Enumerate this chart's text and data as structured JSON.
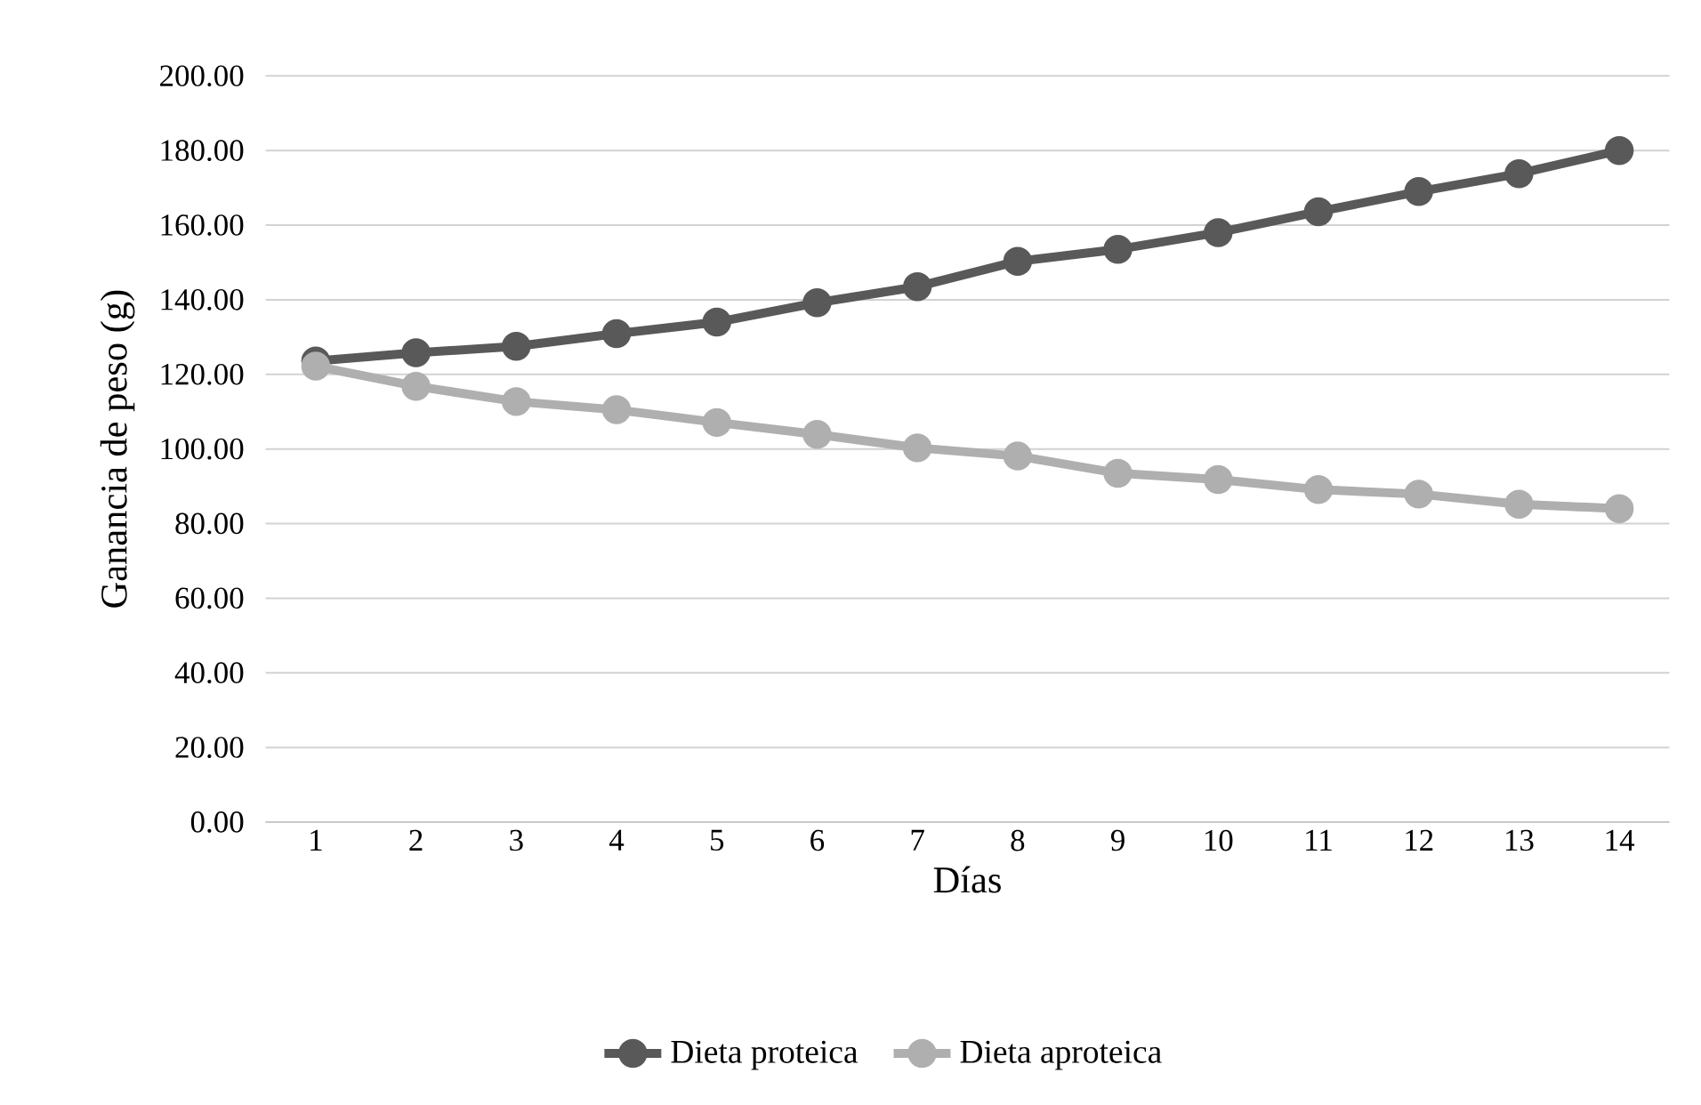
{
  "chart_data": {
    "type": "line",
    "xlabel": "Días",
    "ylabel": "Ganancia de peso (g)",
    "categories": [
      "1",
      "2",
      "3",
      "4",
      "5",
      "6",
      "7",
      "8",
      "9",
      "10",
      "11",
      "12",
      "13",
      "14"
    ],
    "series": [
      {
        "name": "Dieta proteica",
        "color": "#595959",
        "values": [
          123.6,
          125.8,
          127.5,
          130.9,
          134,
          139.2,
          143.5,
          150.3,
          153.5,
          158,
          163.6,
          169,
          173.8,
          180
        ]
      },
      {
        "name": "Dieta aproteica",
        "color": "#afafaf",
        "values": [
          122.2,
          116.8,
          112.7,
          110.5,
          107.1,
          103.9,
          100.3,
          98.1,
          93.5,
          91.8,
          89.1,
          87.9,
          85.2,
          84.0
        ]
      }
    ],
    "ylim": [
      0,
      200
    ],
    "yticks": [
      {
        "value": 0,
        "label": "0.00"
      },
      {
        "value": 20,
        "label": "20.00"
      },
      {
        "value": 40,
        "label": "40.00"
      },
      {
        "value": 60,
        "label": "60.00"
      },
      {
        "value": 80,
        "label": "80.00"
      },
      {
        "value": 100,
        "label": "100.00"
      },
      {
        "value": 120,
        "label": "120.00"
      },
      {
        "value": 140,
        "label": "140.00"
      },
      {
        "value": 160,
        "label": "160.00"
      },
      {
        "value": 180,
        "label": "180.00"
      },
      {
        "value": 200,
        "label": "200.00"
      }
    ],
    "grid": "y",
    "legend": "bottom",
    "marker": "circle",
    "line_style": "solid"
  }
}
